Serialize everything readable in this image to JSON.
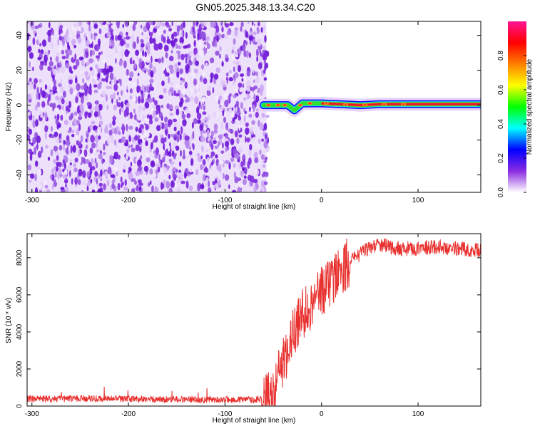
{
  "title": "GN05.2025.348.13.34.C20",
  "chart_data": [
    {
      "type": "heatmap",
      "xlabel": "Height of straight line (km)",
      "ylabel": "Frequency (Hz)",
      "xlim": [
        -305,
        165
      ],
      "ylim": [
        -50,
        48
      ],
      "xticks": [
        -300,
        -200,
        -100,
        0,
        100
      ],
      "yticks": [
        -40,
        -20,
        0,
        20,
        40
      ],
      "noise_region_x": [
        -305,
        -60
      ],
      "signal_band": {
        "x_range": [
          -60,
          165
        ],
        "center_freq": 0,
        "description_points_x": [
          -60,
          -50,
          -35,
          -28,
          -20,
          -10,
          0,
          20,
          40,
          60,
          100,
          165
        ],
        "description_points_y": [
          0,
          0,
          0,
          -3,
          1,
          1,
          1,
          0.5,
          0,
          0.5,
          0.5,
          0.5
        ]
      },
      "colorbar": {
        "label": "Normalized spectral amplitude",
        "range": [
          0,
          1
        ],
        "ticks": [
          "0.0",
          "0.2",
          "0.4",
          "0.6",
          "0.8"
        ],
        "tick_values": [
          0,
          0.2,
          0.4,
          0.6,
          0.8
        ],
        "colormap": [
          "#ffffff",
          "#8a2be2",
          "#0000ff",
          "#00ffff",
          "#00ff00",
          "#ffff00",
          "#ff8000",
          "#ff0000",
          "#ff1493"
        ]
      }
    },
    {
      "type": "line",
      "xlabel": "Height of straight line (km)",
      "ylabel": "SNR (10 * v/v)",
      "xlim": [
        -305,
        165
      ],
      "ylim": [
        0,
        9300
      ],
      "xticks": [
        -300,
        -200,
        -100,
        0,
        100
      ],
      "yticks": [
        0,
        2000,
        4000,
        6000,
        8000
      ],
      "series": [
        {
          "color": "#e8312f",
          "x": [
            -305,
            -280,
            -250,
            -200,
            -150,
            -100,
            -70,
            -60,
            -50,
            -45,
            -40,
            -35,
            -30,
            -25,
            -20,
            -15,
            -10,
            -5,
            0,
            10,
            20,
            30,
            40,
            50,
            60,
            80,
            100,
            120,
            140,
            165
          ],
          "y": [
            400,
            380,
            420,
            380,
            360,
            340,
            350,
            400,
            500,
            1500,
            2400,
            3000,
            3800,
            4500,
            5000,
            5200,
            5600,
            6000,
            6200,
            6800,
            7400,
            7800,
            8200,
            8600,
            8700,
            8500,
            8500,
            8600,
            8500,
            8400
          ]
        }
      ]
    }
  ]
}
